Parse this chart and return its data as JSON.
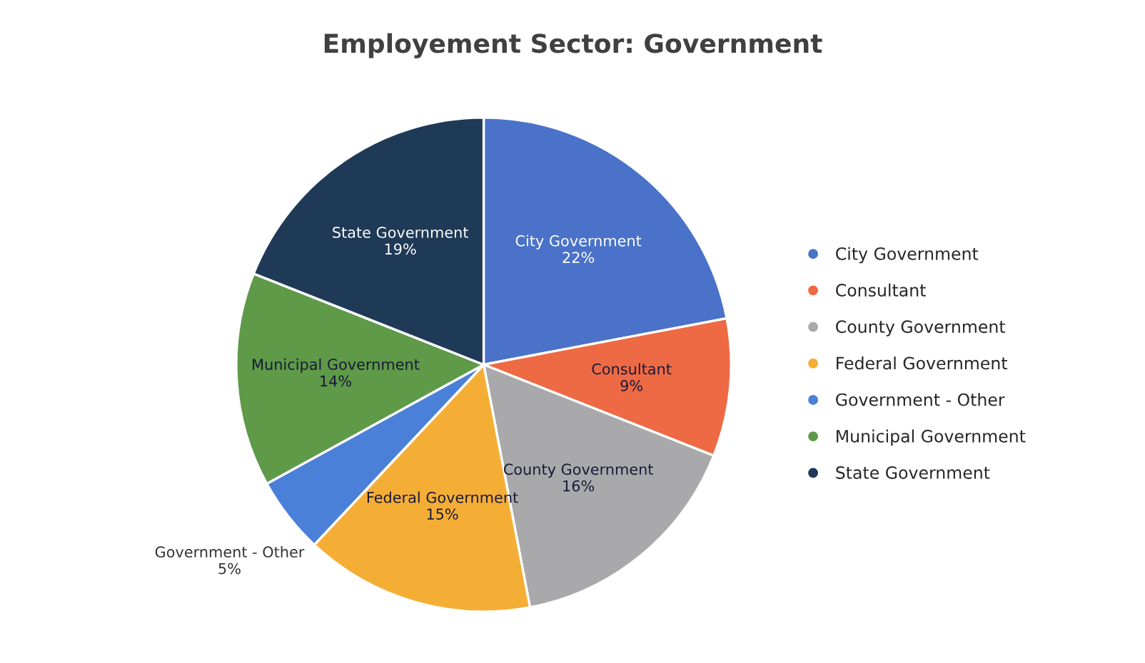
{
  "chart_data": {
    "type": "pie",
    "title": "Employement Sector: Government",
    "categories": [
      "City Government",
      "Consultant",
      "County Government",
      "Federal Government",
      "Government - Other",
      "Municipal Government",
      "State Government"
    ],
    "values": [
      22,
      9,
      16,
      15,
      5,
      14,
      19
    ],
    "colors": [
      "#4a72c8",
      "#ee6a44",
      "#a9a9ab",
      "#f5ae35",
      "#4b80d8",
      "#5e9a48",
      "#1f3a57"
    ],
    "value_labels": [
      "22%",
      "9%",
      "16%",
      "15%",
      "5%",
      "14%",
      "19%"
    ],
    "legend": "right"
  }
}
